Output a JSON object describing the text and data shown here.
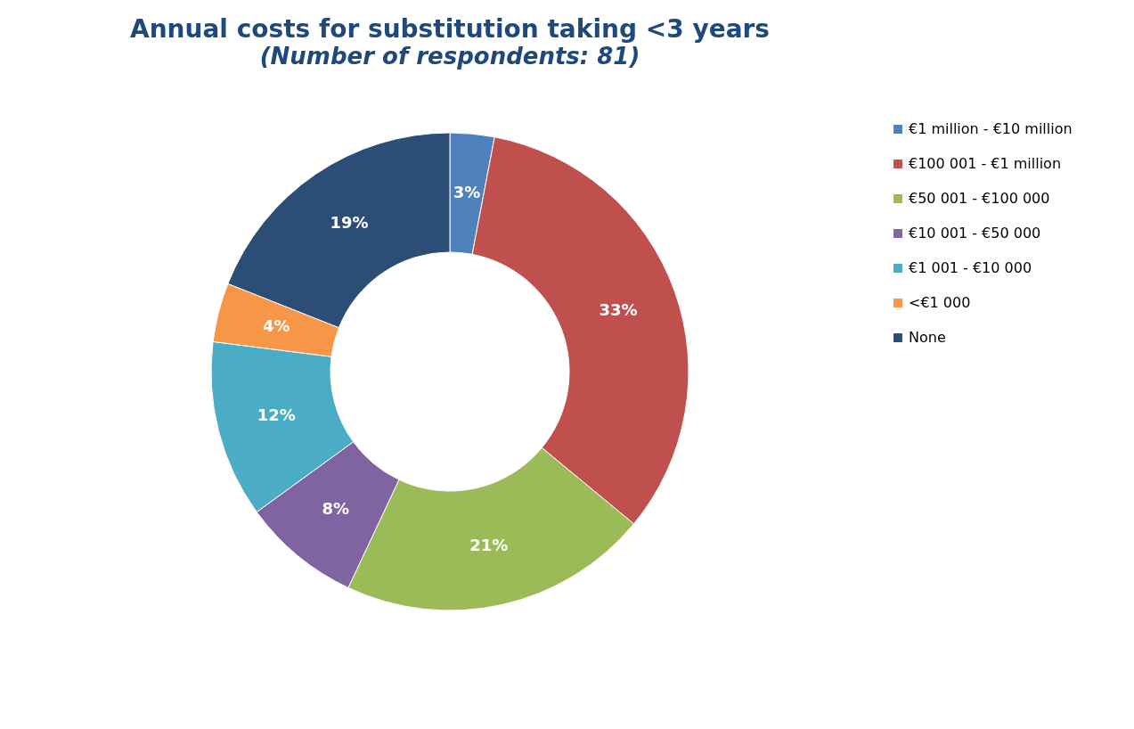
{
  "chart_data": {
    "type": "donut",
    "title": "Annual costs for substitution taking <3 years",
    "subtitle": "(Number of respondents: 81)",
    "categories": [
      "€1 million - €10 million",
      "€100 001 - €1 million",
      "€50 001 - €100 000",
      "€10 001 - €50 000",
      "€1 001 - €10 000",
      "<€1 000",
      "None"
    ],
    "values": [
      3,
      33,
      21,
      8,
      12,
      4,
      19
    ],
    "colors": [
      "#4f81bd",
      "#c0504d",
      "#9bbb59",
      "#8064a2",
      "#4bacc6",
      "#f79646",
      "#2c4d75"
    ],
    "value_labels": [
      "3%",
      "33%",
      "21%",
      "8%",
      "12%",
      "4%",
      "19%"
    ],
    "legend": "right"
  }
}
